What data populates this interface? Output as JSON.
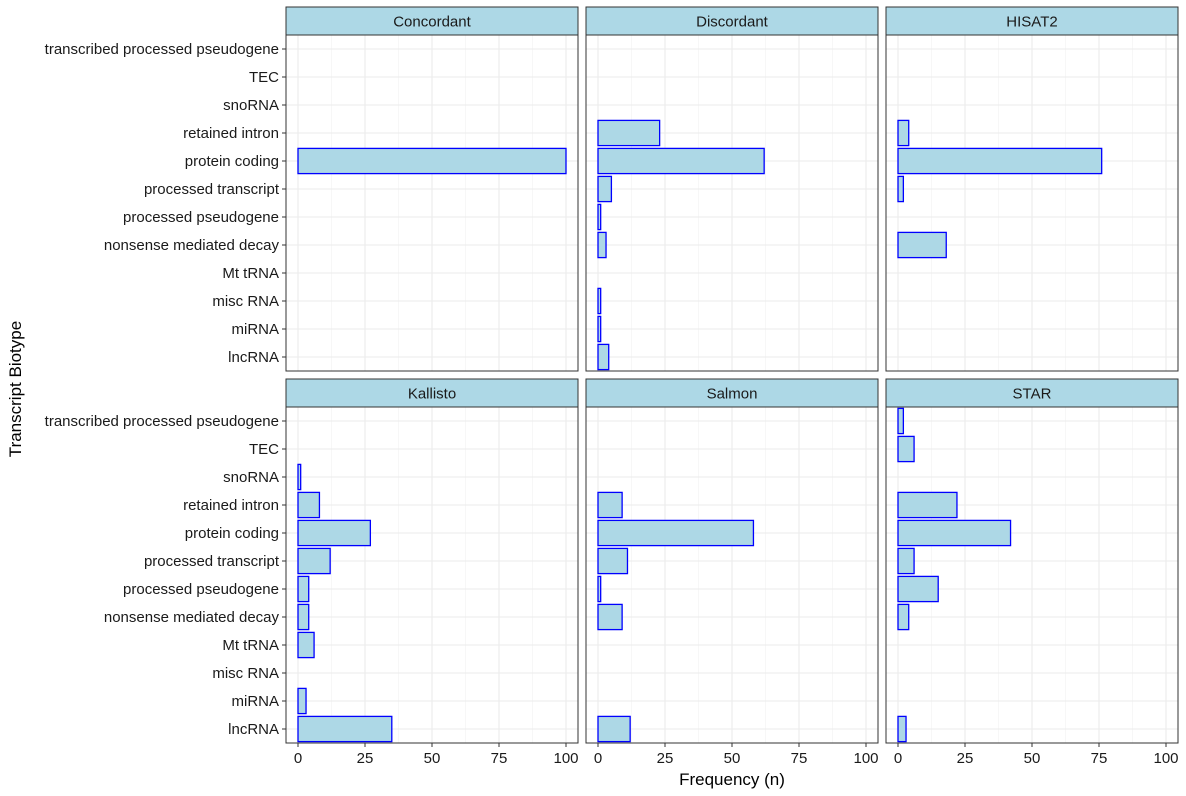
{
  "chart_data": {
    "type": "bar",
    "orientation": "horizontal",
    "facet_layout": "2 rows x 3 columns",
    "xlabel": "Frequency (n)",
    "ylabel": "Transcript Biotype",
    "xlim": [
      0,
      100
    ],
    "xticks": [
      "0",
      "25",
      "50",
      "75",
      "100"
    ],
    "categories": [
      "lncRNA",
      "miRNA",
      "misc RNA",
      "Mt tRNA",
      "nonsense mediated decay",
      "processed pseudogene",
      "processed transcript",
      "protein coding",
      "retained intron",
      "snoRNA",
      "TEC",
      "transcribed processed pseudogene"
    ],
    "grid": true,
    "colors": {
      "bar_fill": "#add8e6",
      "bar_stroke": "#0000ff",
      "strip_fill": "#add8e6"
    },
    "panels": [
      {
        "name": "Concordant",
        "values": [
          null,
          null,
          null,
          null,
          null,
          null,
          null,
          100,
          null,
          null,
          null,
          null
        ]
      },
      {
        "name": "Discordant",
        "values": [
          4,
          1,
          1,
          null,
          3,
          1,
          5,
          62,
          23,
          null,
          null,
          null
        ]
      },
      {
        "name": "HISAT2",
        "values": [
          null,
          null,
          null,
          null,
          18,
          null,
          2,
          76,
          4,
          null,
          null,
          null
        ]
      },
      {
        "name": "Kallisto",
        "values": [
          35,
          3,
          null,
          6,
          4,
          4,
          12,
          27,
          8,
          1,
          null,
          null
        ]
      },
      {
        "name": "Salmon",
        "values": [
          12,
          null,
          null,
          null,
          9,
          1,
          11,
          58,
          9,
          null,
          null,
          null
        ]
      },
      {
        "name": "STAR",
        "values": [
          3,
          null,
          null,
          null,
          4,
          15,
          6,
          42,
          22,
          null,
          6,
          2
        ]
      }
    ]
  }
}
